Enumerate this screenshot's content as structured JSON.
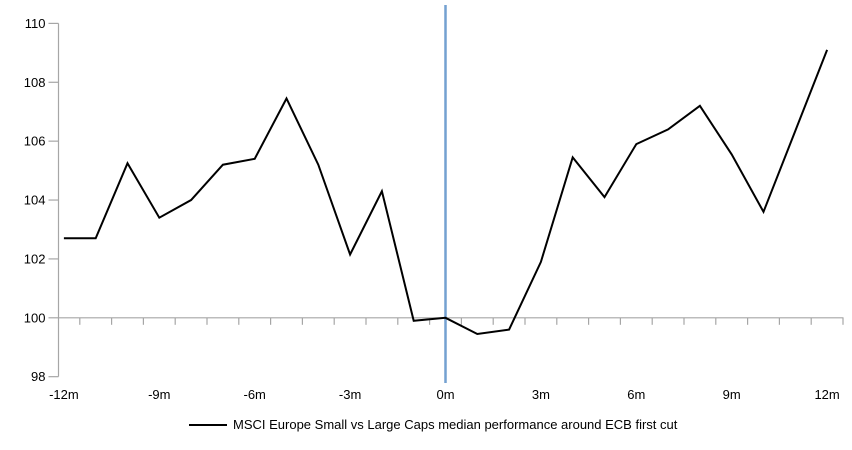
{
  "chart_data": {
    "type": "line",
    "title": "",
    "xlabel": "",
    "ylabel": "",
    "legend_position": "bottom-center",
    "grid": "off",
    "ylim": [
      98,
      110
    ],
    "y_axis": {
      "ticks": [
        98,
        100,
        102,
        104,
        106,
        108,
        110
      ],
      "tick_labels": [
        "98",
        "100",
        "102",
        "104",
        "106",
        "108",
        "110"
      ]
    },
    "x_axis": {
      "unit": "months relative to event",
      "range_months": [
        -12,
        12
      ],
      "tick_label_months": [
        -12,
        -9,
        -6,
        -3,
        0,
        3,
        6,
        9,
        12
      ],
      "tick_labels": [
        "-12m",
        "-9m",
        "-6m",
        "-3m",
        "0m",
        "3m",
        "6m",
        "9m",
        "12m"
      ],
      "axis_cross_value": 100
    },
    "reference_lines": [
      {
        "orientation": "horizontal",
        "value": 100,
        "color": "#a6a6a6"
      },
      {
        "orientation": "vertical",
        "value_month": 0,
        "color": "#74a1d1"
      }
    ],
    "series": [
      {
        "name": "MSCI Europe Small vs Large Caps median performance around ECB first cut",
        "color": "#000000",
        "x_months": [
          -12,
          -11,
          -10,
          -9,
          -8,
          -7,
          -6,
          -5,
          -4,
          -3,
          -2,
          -1,
          0,
          1,
          2,
          3,
          4,
          5,
          6,
          7,
          8,
          9,
          10,
          11,
          12
        ],
        "values": [
          102.7,
          102.7,
          105.25,
          103.4,
          104.0,
          105.2,
          105.4,
          107.45,
          105.2,
          102.15,
          104.3,
          99.9,
          100.0,
          99.45,
          99.6,
          101.9,
          105.45,
          104.1,
          105.9,
          106.4,
          107.2,
          105.55,
          103.6,
          106.35,
          109.1
        ]
      }
    ]
  },
  "legend": {
    "label": "MSCI Europe Small vs Large Caps median performance around ECB first cut"
  },
  "colors": {
    "axis": "#a6a6a6",
    "series": "#000000",
    "event_line": "#74a1d1",
    "background": "#ffffff"
  }
}
